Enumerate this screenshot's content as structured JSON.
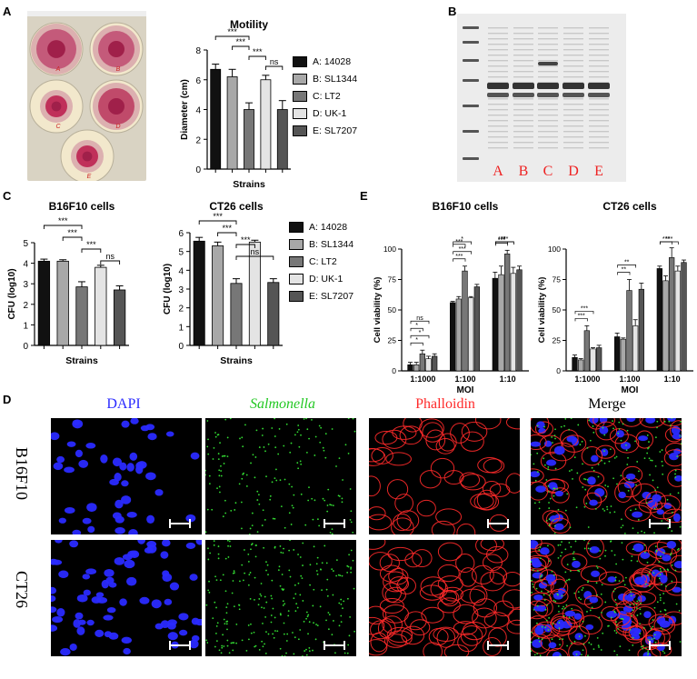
{
  "panels": {
    "A": "A",
    "B": "B",
    "C": "C",
    "D": "D",
    "E": "E"
  },
  "colors": {
    "strain_A": "#111111",
    "strain_B": "#a8a8a8",
    "strain_C": "#777777",
    "strain_D": "#e4e4e4",
    "strain_E": "#555555",
    "dapi": "#2a2aff",
    "salmonella": "#33dd33",
    "phalloidin": "#ff2a2a"
  },
  "petri": {
    "labels": [
      "A",
      "B",
      "C",
      "D",
      "E"
    ]
  },
  "legend": [
    "A: 14028",
    "B: SL1344",
    "C: LT2",
    "D: UK-1",
    "E: SL7207"
  ],
  "chart_data": [
    {
      "type": "bar",
      "title": "Motility",
      "xlabel": "Strains",
      "ylabel": "Diameter (cm)",
      "ylim": [
        0,
        8
      ],
      "yticks": [
        0,
        2,
        4,
        6,
        8
      ],
      "categories": [
        "A",
        "B",
        "C",
        "D",
        "E"
      ],
      "values": [
        6.7,
        6.2,
        4.0,
        6.0,
        4.0
      ],
      "errors": [
        0.35,
        0.5,
        0.45,
        0.3,
        0.6
      ],
      "significance": [
        {
          "from": 0,
          "to": 2,
          "label": "***"
        },
        {
          "from": 1,
          "to": 2,
          "label": "***"
        },
        {
          "from": 2,
          "to": 3,
          "label": "***"
        },
        {
          "from": 3,
          "to": 4,
          "label": "ns"
        }
      ]
    },
    {
      "type": "bar",
      "title": "B16F10 cells",
      "xlabel": "Strains",
      "ylabel": "CFU (log10)",
      "ylim": [
        0,
        5
      ],
      "yticks": [
        0,
        1,
        2,
        3,
        4,
        5
      ],
      "categories": [
        "A",
        "B",
        "C",
        "D",
        "E"
      ],
      "values": [
        4.1,
        4.1,
        2.85,
        3.8,
        2.7
      ],
      "errors": [
        0.1,
        0.07,
        0.25,
        0.1,
        0.2
      ],
      "significance": [
        {
          "from": 0,
          "to": 2,
          "label": "***"
        },
        {
          "from": 1,
          "to": 2,
          "label": "***"
        },
        {
          "from": 2,
          "to": 3,
          "label": "***"
        },
        {
          "from": 3,
          "to": 4,
          "label": "ns"
        }
      ]
    },
    {
      "type": "bar",
      "title": "CT26 cells",
      "xlabel": "Strains",
      "ylabel": "CFU (log10)",
      "ylim": [
        0,
        6
      ],
      "yticks": [
        0,
        1,
        2,
        3,
        4,
        5,
        6
      ],
      "categories": [
        "A",
        "B",
        "C",
        "D",
        "E"
      ],
      "values": [
        5.55,
        5.3,
        3.3,
        5.5,
        3.35
      ],
      "errors": [
        0.2,
        0.2,
        0.25,
        0.1,
        0.2
      ],
      "significance": [
        {
          "from": 0,
          "to": 2,
          "label": "***"
        },
        {
          "from": 1,
          "to": 2,
          "label": "***"
        },
        {
          "from": 2,
          "to": 3,
          "label": "***"
        },
        {
          "from": 2,
          "to": 4,
          "label": "ns"
        }
      ]
    },
    {
      "type": "bar",
      "title": "B16F10 cells",
      "xlabel": "MOI",
      "ylabel": "Cell viability (%)",
      "ylim": [
        0,
        100
      ],
      "yticks": [
        0,
        25,
        50,
        75,
        100
      ],
      "categories": [
        "1:1000",
        "1:100",
        "1:10"
      ],
      "values": [
        [
          5,
          5,
          14,
          10,
          12
        ],
        [
          56,
          59,
          82,
          60,
          69
        ],
        [
          76,
          79,
          96,
          80,
          83
        ]
      ],
      "errors": [
        [
          2,
          2,
          3,
          2,
          2
        ],
        [
          1,
          2,
          4,
          1,
          2
        ],
        [
          5,
          7,
          3,
          5,
          3
        ]
      ],
      "significance": [
        "*",
        "*",
        "*",
        "ns",
        "***",
        "***",
        "***",
        "*",
        "***",
        "***",
        "***",
        "*"
      ]
    },
    {
      "type": "bar",
      "title": "CT26 cells",
      "xlabel": "MOI",
      "ylabel": "Cell viability (%)",
      "ylim": [
        0,
        100
      ],
      "yticks": [
        0,
        25,
        50,
        75,
        100
      ],
      "categories": [
        "1:1000",
        "1:100",
        "1:10"
      ],
      "values": [
        [
          11,
          9,
          33,
          18,
          19
        ],
        [
          28,
          26,
          66,
          37,
          67
        ],
        [
          84,
          74,
          93,
          82,
          89
        ]
      ],
      "errors": [
        [
          2,
          1,
          4,
          1,
          2
        ],
        [
          3,
          1,
          9,
          5,
          5
        ],
        [
          2,
          4,
          8,
          4,
          2
        ]
      ],
      "significance": [
        "***",
        "***",
        "**",
        "**",
        "***",
        "***",
        "***",
        "ns"
      ]
    }
  ],
  "gel": {
    "lanes": [
      "A",
      "B",
      "C",
      "D",
      "E"
    ]
  },
  "micro": {
    "columns": [
      "DAPI",
      "Salmonella",
      "Phalloidin",
      "Merge"
    ],
    "rows": [
      "B16F10",
      "CT26"
    ]
  }
}
